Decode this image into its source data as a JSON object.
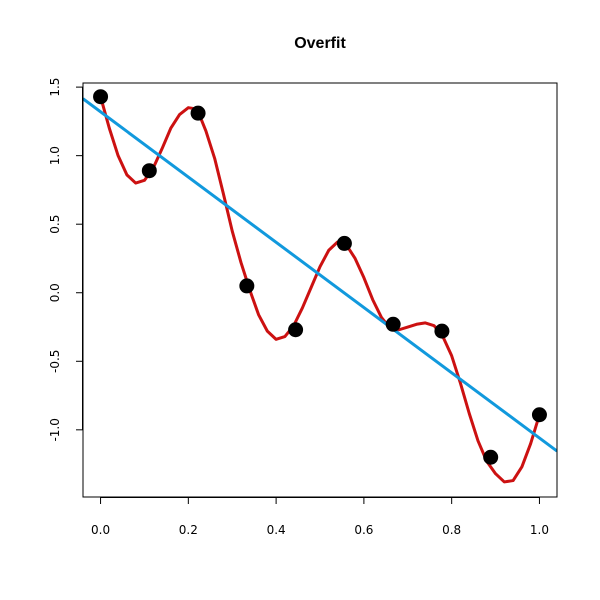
{
  "chart_data": {
    "type": "scatter",
    "title": "Overfit",
    "xlabel": "",
    "ylabel": "",
    "xlim": [
      -0.04,
      1.04
    ],
    "ylim": [
      -1.49,
      1.53
    ],
    "xticks": [
      0.0,
      0.2,
      0.4,
      0.6,
      0.8,
      1.0
    ],
    "xtick_labels": [
      "0.0",
      "0.2",
      "0.4",
      "0.6",
      "0.8",
      "1.0"
    ],
    "yticks": [
      -1.0,
      -0.5,
      0.0,
      0.5,
      1.0,
      1.5
    ],
    "ytick_labels": [
      "-1.0",
      "-0.5",
      "0.0",
      "0.5",
      "1.0",
      "1.5"
    ],
    "grid": false,
    "series": [
      {
        "kind": "points",
        "color": "#000000",
        "x": [
          0.0,
          0.1111,
          0.2222,
          0.3333,
          0.4444,
          0.5556,
          0.6667,
          0.7778,
          0.8889,
          1.0
        ],
        "y": [
          1.43,
          0.89,
          1.31,
          0.05,
          -0.27,
          0.36,
          -0.23,
          -0.28,
          -1.2,
          -0.89
        ]
      },
      {
        "kind": "curve",
        "color": "#cc1111",
        "x": [
          0.0,
          0.02,
          0.04,
          0.06,
          0.08,
          0.1,
          0.12,
          0.14,
          0.16,
          0.18,
          0.2,
          0.22,
          0.24,
          0.26,
          0.28,
          0.3,
          0.32,
          0.34,
          0.36,
          0.38,
          0.4,
          0.42,
          0.44,
          0.46,
          0.48,
          0.5,
          0.52,
          0.54,
          0.56,
          0.58,
          0.6,
          0.62,
          0.64,
          0.66,
          0.68,
          0.7,
          0.72,
          0.74,
          0.76,
          0.78,
          0.8,
          0.82,
          0.84,
          0.86,
          0.88,
          0.9,
          0.92,
          0.94,
          0.96,
          0.98,
          1.0
        ],
        "y": [
          1.43,
          1.2,
          1.0,
          0.86,
          0.8,
          0.82,
          0.91,
          1.05,
          1.2,
          1.3,
          1.35,
          1.34,
          1.18,
          0.98,
          0.72,
          0.45,
          0.22,
          0.02,
          -0.16,
          -0.28,
          -0.34,
          -0.32,
          -0.24,
          -0.11,
          0.04,
          0.19,
          0.31,
          0.37,
          0.35,
          0.25,
          0.11,
          -0.05,
          -0.18,
          -0.26,
          -0.27,
          -0.25,
          -0.23,
          -0.22,
          -0.24,
          -0.32,
          -0.46,
          -0.66,
          -0.88,
          -1.08,
          -1.23,
          -1.32,
          -1.38,
          -1.37,
          -1.27,
          -1.1,
          -0.89
        ]
      },
      {
        "kind": "line",
        "color": "#1199dd",
        "intercept": 1.32,
        "slope": -2.38
      }
    ]
  }
}
